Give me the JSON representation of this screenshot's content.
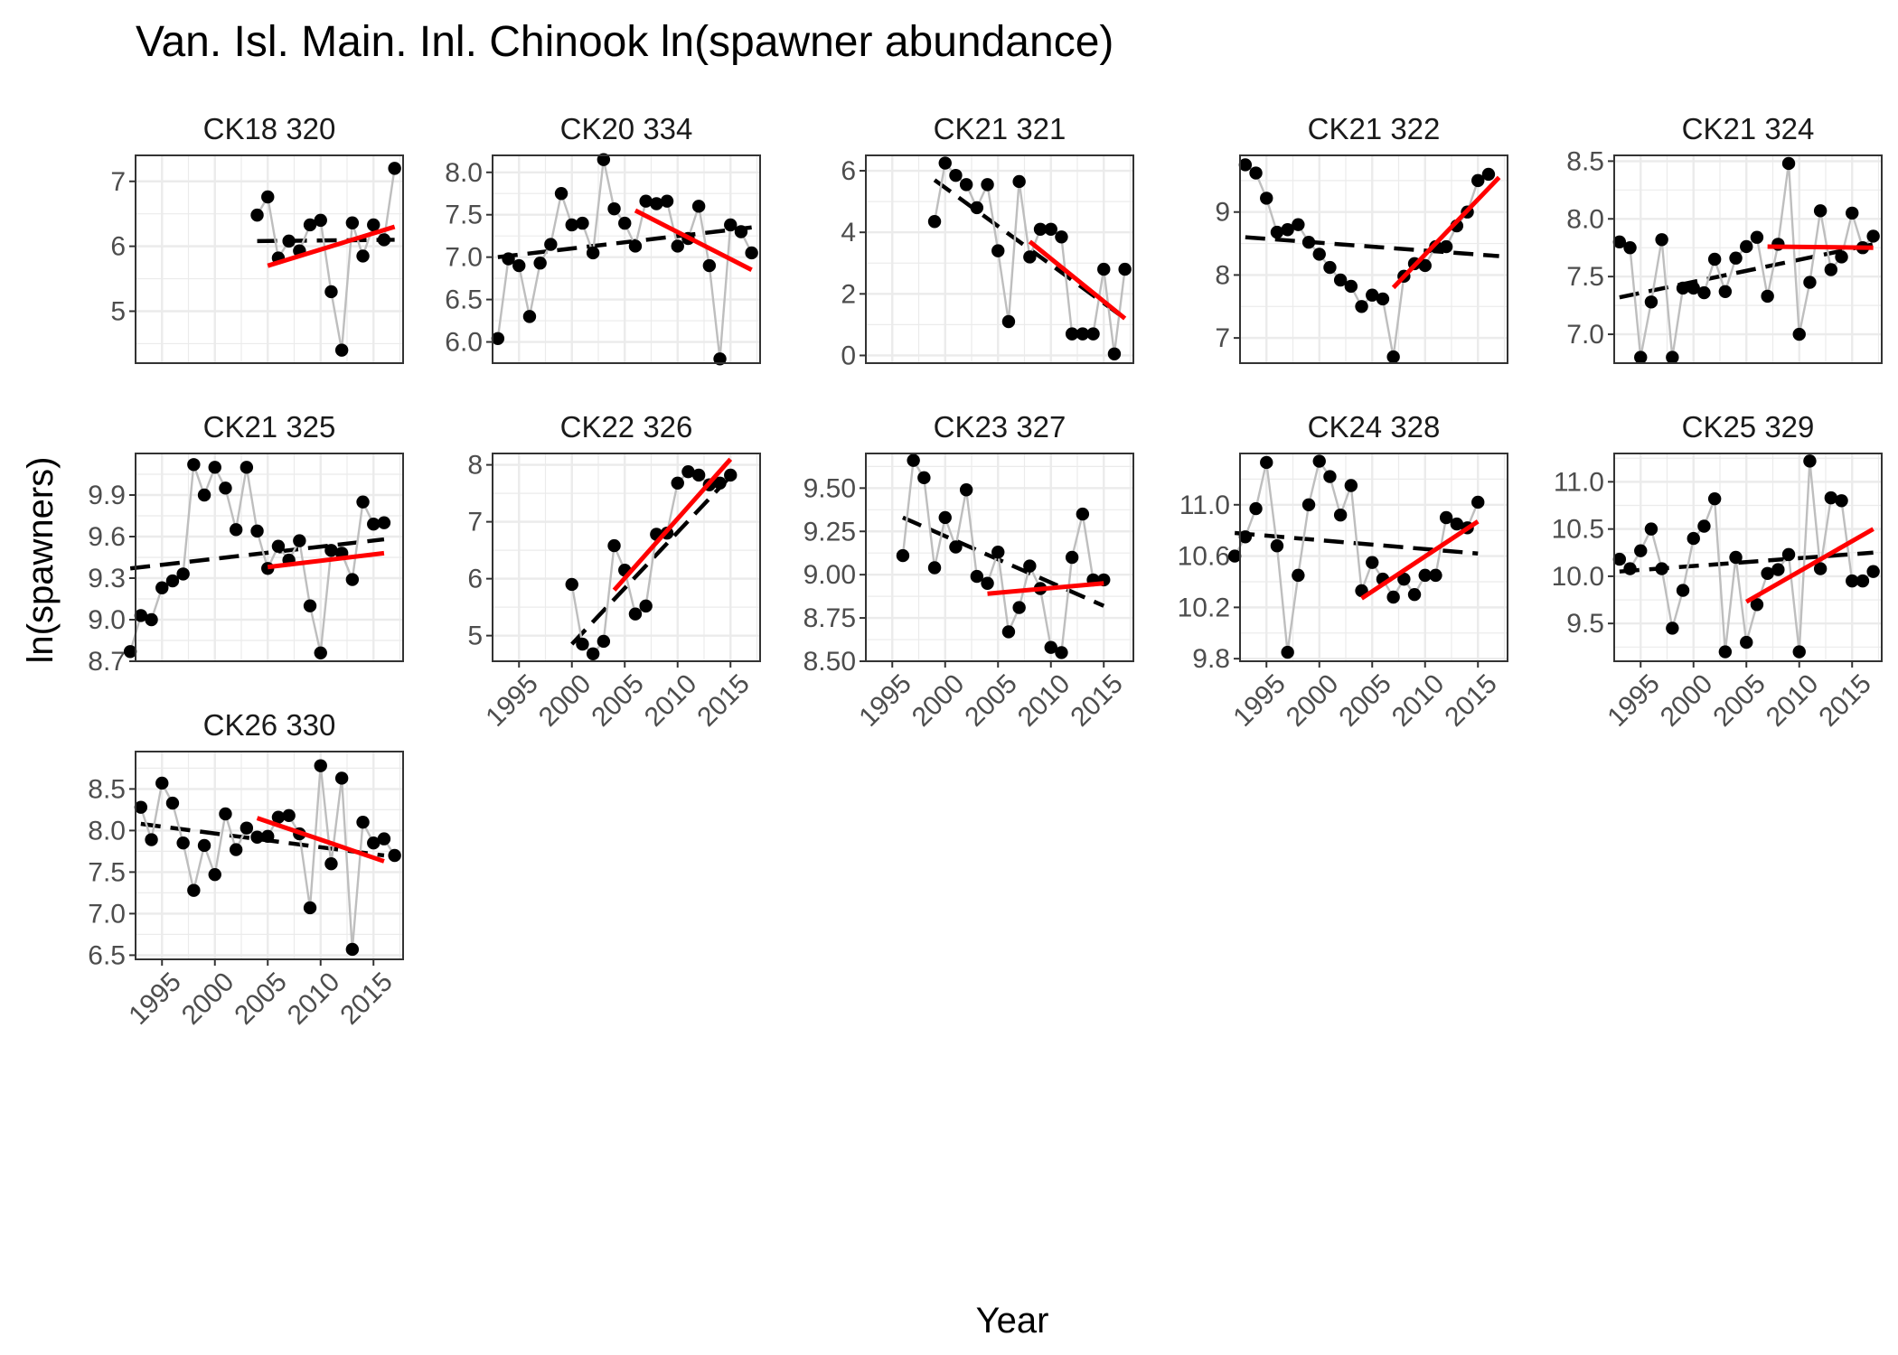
{
  "title": "Van. Isl. Main. Inl. Chinook ln(spawner abundance)",
  "xlabel": "Year",
  "ylabel": "ln(spawners)",
  "colors": {
    "points": "#000000",
    "connect_line": "#bebebe",
    "trend_full": "#000000",
    "trend_recent": "#ff0000",
    "grid": "#ebebeb",
    "panel_border": "#333333"
  },
  "chart_data": {
    "type": "line",
    "x_ticks": [
      1995,
      2000,
      2005,
      2010,
      2015
    ],
    "xlim": [
      1992.5,
      2017.8
    ],
    "panels": [
      {
        "label": "CK18 320",
        "ylim": [
          4.2,
          7.4
        ],
        "yticks": [
          5,
          6,
          7
        ],
        "x": [
          2004,
          2005,
          2006,
          2007,
          2008,
          2009,
          2010,
          2011,
          2012,
          2013,
          2014,
          2015,
          2016,
          2017
        ],
        "y": [
          6.48,
          6.76,
          5.82,
          6.08,
          5.93,
          6.33,
          6.4,
          5.3,
          4.4,
          6.36,
          5.85,
          6.33,
          6.1,
          7.2
        ],
        "trend_full": [
          [
            2004,
            6.08
          ],
          [
            2017,
            6.1
          ]
        ],
        "trend_recent": [
          [
            2005,
            5.7
          ],
          [
            2017,
            6.3
          ]
        ]
      },
      {
        "label": "CK20 334",
        "ylim": [
          5.75,
          8.2
        ],
        "yticks": [
          6.0,
          6.5,
          7.0,
          7.5,
          8.0
        ],
        "x": [
          1993,
          1994,
          1995,
          1996,
          1997,
          1998,
          1999,
          2000,
          2001,
          2002,
          2003,
          2004,
          2005,
          2006,
          2007,
          2008,
          2009,
          2010,
          2011,
          2012,
          2013,
          2014,
          2015,
          2016,
          2017
        ],
        "y": [
          6.04,
          6.98,
          6.9,
          6.3,
          6.93,
          7.15,
          7.75,
          7.38,
          7.4,
          7.05,
          8.15,
          7.57,
          7.4,
          7.13,
          7.66,
          7.63,
          7.66,
          7.13,
          7.22,
          7.6,
          6.9,
          5.8,
          7.38,
          7.3,
          7.05
        ],
        "trend_full": [
          [
            1993,
            7.0
          ],
          [
            2017,
            7.35
          ]
        ],
        "trend_recent": [
          [
            2006,
            7.55
          ],
          [
            2017,
            6.85
          ]
        ]
      },
      {
        "label": "CK21 321",
        "ylim": [
          -0.25,
          6.5
        ],
        "yticks": [
          0,
          2,
          4,
          6
        ],
        "x": [
          1999,
          2000,
          2001,
          2002,
          2003,
          2004,
          2005,
          2006,
          2007,
          2008,
          2009,
          2010,
          2011,
          2012,
          2013,
          2014,
          2015,
          2016,
          2017
        ],
        "y": [
          4.35,
          6.25,
          5.85,
          5.55,
          4.8,
          5.55,
          3.4,
          1.1,
          5.65,
          3.2,
          4.1,
          4.1,
          3.85,
          0.7,
          0.7,
          0.7,
          2.8,
          0.05,
          2.8
        ],
        "trend_full": [
          [
            1999,
            5.7
          ],
          [
            2017,
            1.2
          ]
        ],
        "trend_recent": [
          [
            2008,
            3.7
          ],
          [
            2017,
            1.2
          ]
        ]
      },
      {
        "label": "CK21 322",
        "ylim": [
          6.6,
          9.9
        ],
        "yticks": [
          7,
          8,
          9
        ],
        "x": [
          1993,
          1994,
          1995,
          1996,
          1997,
          1998,
          1999,
          2000,
          2001,
          2002,
          2003,
          2004,
          2005,
          2006,
          2007,
          2008,
          2009,
          2010,
          2011,
          2012,
          2013,
          2014,
          2015,
          2016
        ],
        "y": [
          9.75,
          9.62,
          9.22,
          8.68,
          8.72,
          8.8,
          8.52,
          8.33,
          8.12,
          7.92,
          7.82,
          7.5,
          7.68,
          7.62,
          6.7,
          7.98,
          8.18,
          8.15,
          8.45,
          8.45,
          8.78,
          9.0,
          9.5,
          9.6
        ],
        "trend_full": [
          [
            1993,
            8.6
          ],
          [
            2017,
            8.3
          ]
        ],
        "trend_recent": [
          [
            2007,
            7.8
          ],
          [
            2017,
            9.55
          ]
        ]
      },
      {
        "label": "CK21 324",
        "ylim": [
          6.75,
          8.55
        ],
        "yticks": [
          7.0,
          7.5,
          8.0,
          8.5
        ],
        "x": [
          1993,
          1994,
          1995,
          1996,
          1997,
          1998,
          1999,
          2000,
          2001,
          2002,
          2003,
          2004,
          2005,
          2006,
          2007,
          2008,
          2009,
          2010,
          2011,
          2012,
          2013,
          2014,
          2015,
          2016,
          2017
        ],
        "y": [
          7.8,
          7.75,
          6.8,
          7.28,
          7.82,
          6.8,
          7.4,
          7.4,
          7.36,
          7.65,
          7.37,
          7.66,
          7.76,
          7.84,
          7.33,
          7.78,
          8.48,
          7.0,
          7.45,
          8.07,
          7.56,
          7.67,
          8.05,
          7.75,
          7.85
        ],
        "trend_full": [
          [
            1993,
            7.32
          ],
          [
            2017,
            7.78
          ]
        ],
        "trend_recent": [
          [
            2007,
            7.76
          ],
          [
            2017,
            7.75
          ]
        ]
      },
      {
        "label": "CK21 325",
        "ylim": [
          8.7,
          10.2
        ],
        "yticks": [
          8.7,
          9.0,
          9.3,
          9.6,
          9.9
        ],
        "x": [
          1992,
          1993,
          1994,
          1995,
          1996,
          1997,
          1998,
          1999,
          2000,
          2001,
          2002,
          2003,
          2004,
          2005,
          2006,
          2007,
          2008,
          2009,
          2010,
          2011,
          2012,
          2013,
          2014,
          2015,
          2016
        ],
        "y": [
          8.77,
          9.03,
          9.0,
          9.23,
          9.28,
          9.33,
          10.12,
          9.9,
          10.1,
          9.95,
          9.65,
          10.1,
          9.64,
          9.37,
          9.53,
          9.43,
          9.57,
          9.1,
          8.76,
          9.5,
          9.48,
          9.29,
          9.85,
          9.69,
          9.7
        ],
        "trend_full": [
          [
            1992,
            9.37
          ],
          [
            2016,
            9.58
          ]
        ],
        "trend_recent": [
          [
            2005,
            9.38
          ],
          [
            2016,
            9.48
          ]
        ]
      },
      {
        "label": "CK22 326",
        "ylim": [
          4.55,
          8.2
        ],
        "yticks": [
          5,
          6,
          7,
          8
        ],
        "x": [
          2000,
          2001,
          2002,
          2003,
          2004,
          2005,
          2006,
          2007,
          2008,
          2009,
          2010,
          2011,
          2012,
          2013,
          2014,
          2015
        ],
        "y": [
          5.9,
          4.85,
          4.68,
          4.9,
          6.58,
          6.15,
          5.38,
          5.52,
          6.78,
          6.8,
          7.68,
          7.88,
          7.82,
          7.65,
          7.68,
          7.82
        ],
        "trend_full": [
          [
            2000,
            4.85
          ],
          [
            2015,
            7.8
          ]
        ],
        "trend_recent": [
          [
            2004,
            5.8
          ],
          [
            2015,
            8.1
          ]
        ]
      },
      {
        "label": "CK23 327",
        "ylim": [
          8.5,
          9.7
        ],
        "yticks": [
          8.5,
          8.75,
          9.0,
          9.25,
          9.5
        ],
        "x": [
          1996,
          1997,
          1998,
          1999,
          2000,
          2001,
          2002,
          2003,
          2004,
          2005,
          2006,
          2007,
          2008,
          2009,
          2010,
          2011,
          2012,
          2013,
          2014,
          2015
        ],
        "y": [
          9.11,
          9.66,
          9.56,
          9.04,
          9.33,
          9.16,
          9.49,
          8.99,
          8.95,
          9.13,
          8.67,
          8.81,
          9.05,
          8.92,
          8.58,
          8.55,
          9.1,
          9.35,
          8.97,
          8.97
        ],
        "trend_full": [
          [
            1996,
            9.33
          ],
          [
            2015,
            8.82
          ]
        ],
        "trend_recent": [
          [
            2004,
            8.89
          ],
          [
            2015,
            8.95
          ]
        ]
      },
      {
        "label": "CK24 328",
        "ylim": [
          9.78,
          11.4
        ],
        "yticks": [
          9.8,
          10.2,
          10.6,
          11.0
        ],
        "x": [
          1992,
          1993,
          1994,
          1995,
          1996,
          1997,
          1998,
          1999,
          2000,
          2001,
          2002,
          2003,
          2004,
          2005,
          2006,
          2007,
          2008,
          2009,
          2010,
          2011,
          2012,
          2013,
          2014,
          2015
        ],
        "y": [
          10.6,
          10.75,
          10.97,
          11.33,
          10.68,
          9.85,
          10.45,
          11.0,
          11.34,
          11.22,
          10.92,
          11.15,
          10.33,
          10.55,
          10.42,
          10.28,
          10.42,
          10.3,
          10.45,
          10.45,
          10.9,
          10.85,
          10.82,
          11.02
        ],
        "trend_full": [
          [
            1992,
            10.78
          ],
          [
            2015,
            10.62
          ]
        ],
        "trend_recent": [
          [
            2004,
            10.27
          ],
          [
            2015,
            10.87
          ]
        ]
      },
      {
        "label": "CK25 329",
        "ylim": [
          9.1,
          11.3
        ],
        "yticks": [
          9.5,
          10.0,
          10.5,
          11.0
        ],
        "x": [
          1993,
          1994,
          1995,
          1996,
          1997,
          1998,
          1999,
          2000,
          2001,
          2002,
          2003,
          2004,
          2005,
          2006,
          2007,
          2008,
          2009,
          2010,
          2011,
          2012,
          2013,
          2014,
          2015,
          2016,
          2017
        ],
        "y": [
          10.18,
          10.08,
          10.27,
          10.5,
          10.08,
          9.45,
          9.85,
          10.4,
          10.53,
          10.82,
          9.2,
          10.2,
          9.3,
          9.7,
          10.03,
          10.07,
          10.23,
          9.2,
          11.22,
          10.08,
          10.83,
          10.8,
          9.95,
          9.95,
          10.05
        ],
        "trend_full": [
          [
            1993,
            10.05
          ],
          [
            2017,
            10.25
          ]
        ],
        "trend_recent": [
          [
            2005,
            9.73
          ],
          [
            2017,
            10.5
          ]
        ]
      },
      {
        "label": "CK26 330",
        "ylim": [
          6.45,
          8.95
        ],
        "yticks": [
          6.5,
          7.0,
          7.5,
          8.0,
          8.5
        ],
        "x": [
          1993,
          1994,
          1995,
          1996,
          1997,
          1998,
          1999,
          2000,
          2001,
          2002,
          2003,
          2004,
          2005,
          2006,
          2007,
          2008,
          2009,
          2010,
          2011,
          2012,
          2013,
          2014,
          2015,
          2016,
          2017
        ],
        "y": [
          8.28,
          7.89,
          8.57,
          8.33,
          7.85,
          7.28,
          7.82,
          7.47,
          8.2,
          7.77,
          8.03,
          7.92,
          7.93,
          8.16,
          8.18,
          7.96,
          7.07,
          8.78,
          7.6,
          8.63,
          6.57,
          8.1,
          7.85,
          7.9,
          7.7
        ],
        "trend_full": [
          [
            1993,
            8.08
          ],
          [
            2016,
            7.7
          ]
        ],
        "trend_recent": [
          [
            2004,
            8.15
          ],
          [
            2016,
            7.63
          ]
        ]
      }
    ]
  }
}
